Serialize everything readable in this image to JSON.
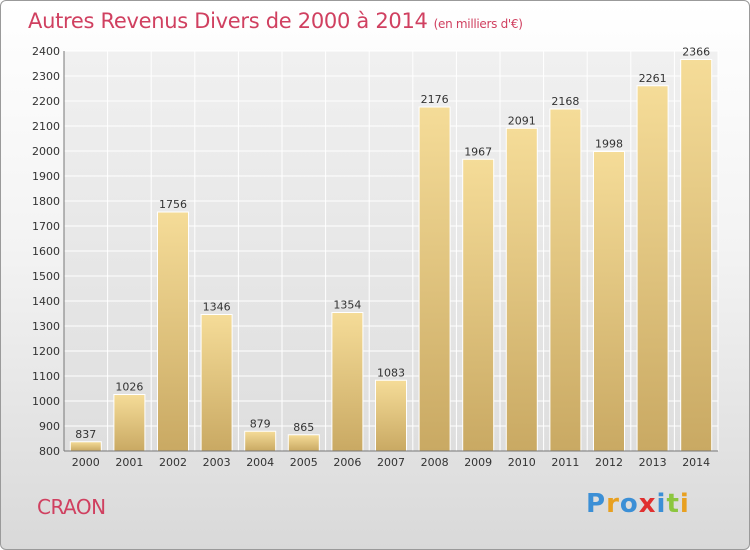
{
  "chart_data": {
    "type": "bar",
    "title": "Autres Revenus Divers de 2000 à 2014",
    "subtitle": "(en milliers d'€)",
    "categories": [
      "2000",
      "2001",
      "2002",
      "2003",
      "2004",
      "2005",
      "2006",
      "2007",
      "2008",
      "2009",
      "2010",
      "2011",
      "2012",
      "2013",
      "2014"
    ],
    "values": [
      837,
      1026,
      1756,
      1346,
      879,
      865,
      1354,
      1083,
      2176,
      1967,
      2091,
      2168,
      1998,
      2261,
      2366
    ],
    "ylim": [
      800,
      2400
    ],
    "yticks": [
      800,
      900,
      1000,
      1100,
      1200,
      1300,
      1400,
      1500,
      1600,
      1700,
      1800,
      1900,
      2000,
      2100,
      2200,
      2300,
      2400
    ],
    "xlabel": "",
    "ylabel": "",
    "grid": true
  },
  "place_name": "CRAON",
  "logo": {
    "text": "Proxiti",
    "letters": [
      {
        "char": "P",
        "color": "#3b8fd6"
      },
      {
        "char": "r",
        "color": "#e8a020"
      },
      {
        "char": "o",
        "color": "#3b8fd6"
      },
      {
        "char": "x",
        "color": "#e03030"
      },
      {
        "char": "i",
        "color": "#3b8fd6"
      },
      {
        "char": "t",
        "color": "#8cc63f"
      },
      {
        "char": "i",
        "color": "#e8a020"
      }
    ]
  },
  "colors": {
    "accent": "#d04060",
    "bar_top": "#f5dc98",
    "bar_bottom": "#c9a963",
    "grid": "#ffffff",
    "axis_text": "#333333"
  }
}
